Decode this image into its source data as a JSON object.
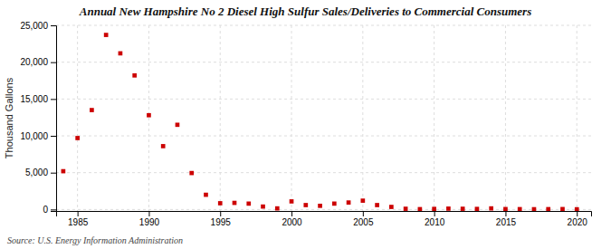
{
  "chart_data": {
    "type": "scatter",
    "title": "Annual New Hampshire No 2 Diesel High Sulfur Sales/Deliveries to Commercial Consumers",
    "ylabel": "Thousand Gallons",
    "annotations": [
      "Source: U.S. Energy Information Administration"
    ],
    "color": "#cc0000",
    "marker": "square",
    "grid": true,
    "xlim": [
      1983.5,
      2021
    ],
    "ylim": [
      -200,
      25000
    ],
    "xticks": [
      1985,
      1990,
      1995,
      2000,
      2005,
      2010,
      2015,
      2020
    ],
    "yticks": [
      0,
      {
        "value": 5000,
        "label": "5,000"
      },
      {
        "value": 10000,
        "label": "10,000"
      },
      {
        "value": 15000,
        "label": "15,000"
      },
      {
        "value": 20000,
        "label": "20,000"
      },
      {
        "value": 25000,
        "label": "25,000"
      }
    ],
    "x": [
      1984,
      1985,
      1986,
      1987,
      1988,
      1989,
      1990,
      1991,
      1992,
      1993,
      1994,
      1995,
      1996,
      1997,
      1998,
      1999,
      2000,
      2001,
      2002,
      2003,
      2004,
      2005,
      2006,
      2007,
      2008,
      2009,
      2010,
      2011,
      2012,
      2013,
      2014,
      2015,
      2016,
      2017,
      2018,
      2019,
      2020
    ],
    "values": [
      5200,
      9700,
      13500,
      23700,
      21200,
      18200,
      12800,
      8600,
      11500,
      4950,
      2000,
      850,
      900,
      800,
      400,
      150,
      1100,
      600,
      500,
      800,
      950,
      1200,
      600,
      350,
      100,
      50,
      80,
      120,
      100,
      80,
      150,
      60,
      50,
      40,
      50,
      60,
      30
    ]
  }
}
